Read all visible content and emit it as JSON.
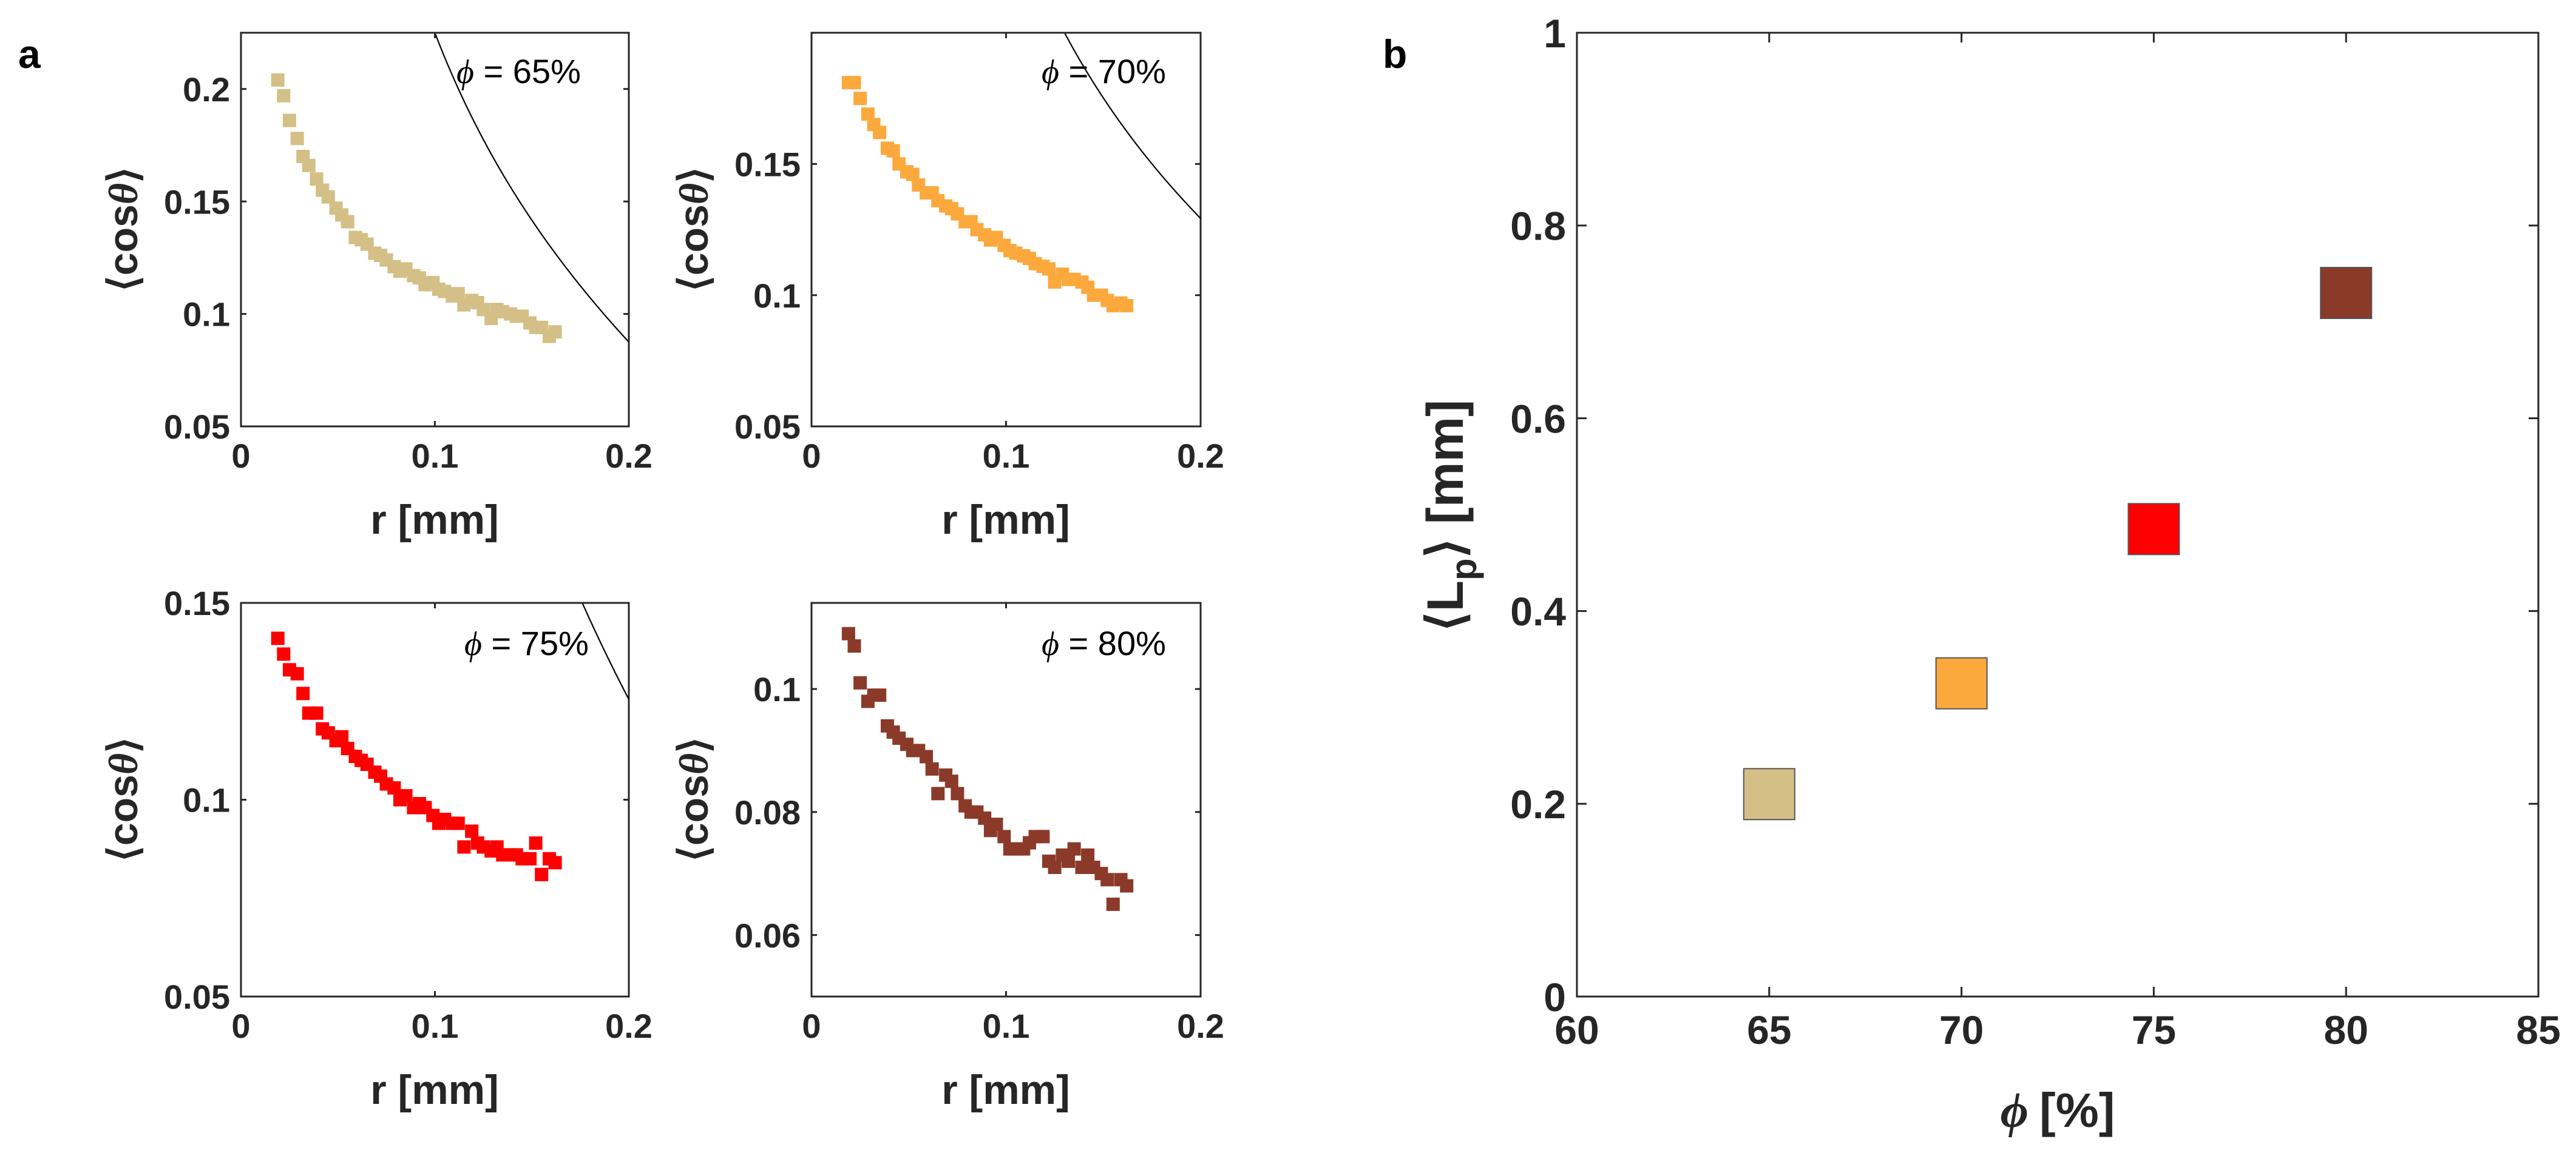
{
  "panel_labels": {
    "a": "a",
    "b": "b"
  },
  "axis_text": {
    "r_label": "r [mm]",
    "cos_open": "⟨cos",
    "cos_theta": "θ",
    "cos_close": "⟩",
    "lp_open": "⟨L",
    "lp_sub": "p",
    "lp_close": "⟩ [mm]",
    "phi_symbol": "ϕ",
    "phi_unit": "[%]"
  },
  "colors": {
    "phi65": "#D4BF86",
    "phi70": "#FBA93D",
    "phi75": "#FF0000",
    "phi80": "#8B3A2A",
    "fit": "#000000",
    "axis": "#262626"
  },
  "chart_data": [
    {
      "id": "a65",
      "type": "scatter",
      "annotation_value": " = 65%",
      "color": "#D4BF86",
      "xlabel": "r [mm]",
      "ylabel": "⟨cosθ⟩",
      "xlim": [
        0,
        0.2
      ],
      "ylim": [
        0.05,
        0.225
      ],
      "xticks": [
        0,
        0.1,
        0.2
      ],
      "xtick_labels": [
        "0",
        "0.1",
        "0.2"
      ],
      "yticks": [
        0.05,
        0.1,
        0.15,
        0.2
      ],
      "ytick_labels": [
        "0.05",
        "0.1",
        "0.15",
        "0.2"
      ],
      "fit": {
        "A": 0.0175,
        "B": -0.5
      },
      "x": [
        0.019,
        0.022,
        0.025,
        0.029,
        0.032,
        0.035,
        0.039,
        0.042,
        0.045,
        0.049,
        0.052,
        0.055,
        0.059,
        0.062,
        0.065,
        0.069,
        0.072,
        0.075,
        0.079,
        0.082,
        0.085,
        0.089,
        0.092,
        0.095,
        0.099,
        0.102,
        0.105,
        0.109,
        0.112,
        0.115,
        0.119,
        0.122,
        0.125,
        0.129,
        0.132,
        0.135,
        0.139,
        0.142,
        0.145,
        0.149,
        0.152,
        0.155,
        0.159,
        0.162
      ],
      "y": [
        0.204,
        0.197,
        0.186,
        0.178,
        0.17,
        0.166,
        0.16,
        0.155,
        0.152,
        0.147,
        0.144,
        0.141,
        0.134,
        0.133,
        0.131,
        0.127,
        0.126,
        0.124,
        0.121,
        0.119,
        0.12,
        0.117,
        0.116,
        0.113,
        0.114,
        0.111,
        0.11,
        0.108,
        0.109,
        0.104,
        0.106,
        0.105,
        0.102,
        0.098,
        0.102,
        0.101,
        0.1,
        0.099,
        0.099,
        0.096,
        0.094,
        0.094,
        0.09,
        0.092
      ]
    },
    {
      "id": "a70",
      "type": "scatter",
      "annotation_value": " = 70%",
      "color": "#FBA93D",
      "xlabel": "r [mm]",
      "ylabel": "⟨cosθ⟩",
      "xlim": [
        0,
        0.2
      ],
      "ylim": [
        0.05,
        0.2
      ],
      "xticks": [
        0,
        0.1,
        0.2
      ],
      "xtick_labels": [
        "0",
        "0.1",
        "0.2"
      ],
      "yticks": [
        0.05,
        0.1,
        0.15
      ],
      "ytick_labels": [
        "0.05",
        "0.1",
        "0.15"
      ],
      "fit": {
        "A": 0.01825,
        "B": -0.31
      },
      "x": [
        0.019,
        0.022,
        0.025,
        0.029,
        0.032,
        0.035,
        0.039,
        0.042,
        0.045,
        0.049,
        0.052,
        0.055,
        0.059,
        0.062,
        0.065,
        0.069,
        0.072,
        0.075,
        0.079,
        0.082,
        0.085,
        0.089,
        0.092,
        0.095,
        0.099,
        0.102,
        0.105,
        0.109,
        0.112,
        0.115,
        0.119,
        0.122,
        0.125,
        0.129,
        0.132,
        0.135,
        0.139,
        0.142,
        0.145,
        0.149,
        0.152,
        0.155,
        0.159,
        0.162
      ],
      "y": [
        0.181,
        0.181,
        0.175,
        0.169,
        0.165,
        0.162,
        0.156,
        0.155,
        0.15,
        0.147,
        0.146,
        0.142,
        0.139,
        0.139,
        0.136,
        0.134,
        0.133,
        0.131,
        0.128,
        0.128,
        0.125,
        0.123,
        0.121,
        0.122,
        0.119,
        0.117,
        0.116,
        0.115,
        0.114,
        0.112,
        0.111,
        0.11,
        0.105,
        0.108,
        0.106,
        0.106,
        0.105,
        0.103,
        0.1,
        0.1,
        0.098,
        0.096,
        0.097,
        0.096
      ]
    },
    {
      "id": "a75",
      "type": "scatter",
      "annotation_value": " = 75%",
      "color": "#FF0000",
      "xlabel": "r [mm]",
      "ylabel": "⟨cosθ⟩",
      "xlim": [
        0,
        0.2
      ],
      "ylim": [
        0.05,
        0.15
      ],
      "xticks": [
        0,
        0.1,
        0.2
      ],
      "xtick_labels": [
        "0",
        "0.1",
        "0.2"
      ],
      "yticks": [
        0.05,
        0.1,
        0.15
      ],
      "ytick_labels": [
        "0.05",
        "0.1",
        "0.15"
      ],
      "fit": {
        "A": 0.0215,
        "B": -0.41
      },
      "x": [
        0.019,
        0.022,
        0.025,
        0.029,
        0.032,
        0.035,
        0.039,
        0.042,
        0.045,
        0.049,
        0.052,
        0.055,
        0.059,
        0.062,
        0.065,
        0.069,
        0.072,
        0.075,
        0.079,
        0.082,
        0.085,
        0.089,
        0.092,
        0.095,
        0.099,
        0.102,
        0.105,
        0.109,
        0.112,
        0.115,
        0.119,
        0.122,
        0.125,
        0.129,
        0.132,
        0.135,
        0.139,
        0.142,
        0.145,
        0.149,
        0.152,
        0.155,
        0.159,
        0.162
      ],
      "y": [
        0.141,
        0.137,
        0.133,
        0.132,
        0.127,
        0.122,
        0.122,
        0.118,
        0.117,
        0.115,
        0.116,
        0.113,
        0.111,
        0.11,
        0.109,
        0.107,
        0.106,
        0.104,
        0.103,
        0.1,
        0.101,
        0.098,
        0.099,
        0.098,
        0.096,
        0.094,
        0.095,
        0.094,
        0.094,
        0.088,
        0.092,
        0.089,
        0.088,
        0.087,
        0.088,
        0.086,
        0.086,
        0.086,
        0.085,
        0.085,
        0.089,
        0.081,
        0.085,
        0.084
      ]
    },
    {
      "id": "a80",
      "type": "scatter",
      "annotation_value": " = 80%",
      "color": "#8B3A2A",
      "xlabel": "r [mm]",
      "ylabel": "⟨cosθ⟩",
      "xlim": [
        0,
        0.2
      ],
      "ylim": [
        0.05,
        0.114
      ],
      "xticks": [
        0,
        0.1,
        0.2
      ],
      "xtick_labels": [
        "0",
        "0.1",
        "0.2"
      ],
      "yticks": [
        0.06,
        0.08,
        0.1
      ],
      "ytick_labels": [
        "0.06",
        "0.08",
        "0.1"
      ],
      "fit": {
        "A": 0.0219,
        "B": -0.37
      },
      "x": [
        0.019,
        0.022,
        0.025,
        0.029,
        0.032,
        0.035,
        0.039,
        0.042,
        0.045,
        0.049,
        0.052,
        0.055,
        0.059,
        0.062,
        0.065,
        0.069,
        0.072,
        0.075,
        0.079,
        0.082,
        0.085,
        0.089,
        0.092,
        0.095,
        0.099,
        0.102,
        0.105,
        0.109,
        0.112,
        0.115,
        0.119,
        0.122,
        0.125,
        0.129,
        0.132,
        0.135,
        0.139,
        0.142,
        0.145,
        0.149,
        0.152,
        0.155,
        0.159,
        0.162
      ],
      "y": [
        0.109,
        0.107,
        0.101,
        0.098,
        0.099,
        0.099,
        0.094,
        0.093,
        0.092,
        0.091,
        0.09,
        0.09,
        0.089,
        0.087,
        0.083,
        0.086,
        0.085,
        0.083,
        0.081,
        0.08,
        0.08,
        0.079,
        0.077,
        0.078,
        0.076,
        0.074,
        0.074,
        0.074,
        0.075,
        0.076,
        0.076,
        0.072,
        0.071,
        0.073,
        0.072,
        0.074,
        0.071,
        0.073,
        0.071,
        0.07,
        0.069,
        0.065,
        0.069,
        0.068
      ]
    },
    {
      "id": "b",
      "type": "scatter",
      "color": "#000000",
      "xlabel": "ϕ [%]",
      "ylabel": "⟨Lp⟩ [mm]",
      "xlim": [
        60,
        85
      ],
      "ylim": [
        0,
        1
      ],
      "xticks": [
        60,
        65,
        70,
        75,
        80,
        85
      ],
      "xtick_labels": [
        "60",
        "65",
        "70",
        "75",
        "80",
        "85"
      ],
      "yticks": [
        0,
        0.2,
        0.4,
        0.6,
        0.8,
        1
      ],
      "ytick_labels": [
        "0",
        "0.2",
        "0.4",
        "0.6",
        "0.8",
        "1"
      ],
      "x": [
        65,
        70,
        75,
        80
      ],
      "y": [
        0.21,
        0.325,
        0.485,
        0.73
      ],
      "point_colors": [
        "#D4BF86",
        "#FBA93D",
        "#FF0000",
        "#8B3A2A"
      ]
    }
  ]
}
